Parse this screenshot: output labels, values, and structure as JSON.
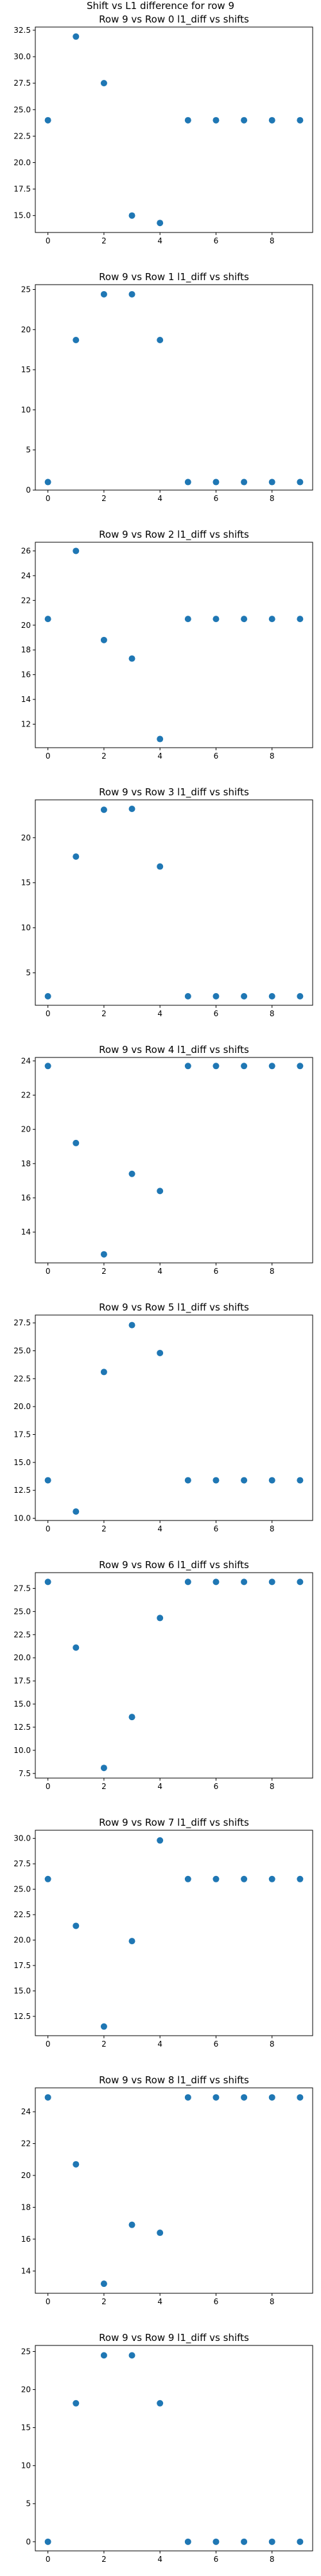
{
  "figure": {
    "suptitle": "Shift vs L1 difference for row 9",
    "marker_color": "#1f77b4"
  },
  "chart_data": [
    {
      "type": "scatter",
      "title": "Row 9 vs Row 0 l1_diff vs shifts",
      "xlabel": "",
      "ylabel": "",
      "x": [
        0,
        1,
        2,
        3,
        4,
        5,
        6,
        7,
        8,
        9
      ],
      "y": [
        24.0,
        31.9,
        27.5,
        15.0,
        14.3,
        24.0,
        24.0,
        24.0,
        24.0,
        24.0
      ],
      "xlim": [
        -0.45,
        9.45
      ],
      "ylim": [
        13.4,
        32.8
      ],
      "xticks": [
        0,
        2,
        4,
        6,
        8
      ],
      "yticks": [
        15.0,
        17.5,
        20.0,
        22.5,
        25.0,
        27.5,
        30.0,
        32.5
      ],
      "ytick_labels": [
        "15.0",
        "17.5",
        "20.0",
        "22.5",
        "25.0",
        "27.5",
        "30.0",
        "32.5"
      ],
      "grid": false,
      "legend": false
    },
    {
      "type": "scatter",
      "title": "Row 9 vs Row 1 l1_diff vs shifts",
      "xlabel": "",
      "ylabel": "",
      "x": [
        0,
        1,
        2,
        3,
        4,
        5,
        6,
        7,
        8,
        9
      ],
      "y": [
        1.0,
        18.7,
        24.4,
        24.4,
        18.7,
        1.0,
        1.0,
        1.0,
        1.0,
        1.0
      ],
      "xlim": [
        -0.45,
        9.45
      ],
      "ylim": [
        0,
        25.6
      ],
      "xticks": [
        0,
        2,
        4,
        6,
        8
      ],
      "yticks": [
        0,
        5,
        10,
        15,
        20,
        25
      ],
      "ytick_labels": [
        "0",
        "5",
        "10",
        "15",
        "20",
        "25"
      ],
      "grid": false,
      "legend": false
    },
    {
      "type": "scatter",
      "title": "Row 9 vs Row 2 l1_diff vs shifts",
      "xlabel": "",
      "ylabel": "",
      "x": [
        0,
        1,
        2,
        3,
        4,
        5,
        6,
        7,
        8,
        9
      ],
      "y": [
        20.5,
        26.0,
        18.8,
        17.3,
        10.8,
        20.5,
        20.5,
        20.5,
        20.5,
        20.5
      ],
      "xlim": [
        -0.45,
        9.45
      ],
      "ylim": [
        10.1,
        26.7
      ],
      "xticks": [
        0,
        2,
        4,
        6,
        8
      ],
      "yticks": [
        12,
        14,
        16,
        18,
        20,
        22,
        24,
        26
      ],
      "ytick_labels": [
        "12",
        "14",
        "16",
        "18",
        "20",
        "22",
        "24",
        "26"
      ],
      "grid": false,
      "legend": false
    },
    {
      "type": "scatter",
      "title": "Row 9 vs Row 3 l1_diff vs shifts",
      "xlabel": "",
      "ylabel": "",
      "x": [
        0,
        1,
        2,
        3,
        4,
        5,
        6,
        7,
        8,
        9
      ],
      "y": [
        2.4,
        17.9,
        23.1,
        23.2,
        16.8,
        2.4,
        2.4,
        2.4,
        2.4,
        2.4
      ],
      "xlim": [
        -0.45,
        9.45
      ],
      "ylim": [
        1.4,
        24.2
      ],
      "xticks": [
        0,
        2,
        4,
        6,
        8
      ],
      "yticks": [
        5,
        10,
        15,
        20
      ],
      "ytick_labels": [
        "5",
        "10",
        "15",
        "20"
      ],
      "grid": false,
      "legend": false
    },
    {
      "type": "scatter",
      "title": "Row 9 vs Row 4 l1_diff vs shifts",
      "xlabel": "",
      "ylabel": "",
      "x": [
        0,
        1,
        2,
        3,
        4,
        5,
        6,
        7,
        8,
        9
      ],
      "y": [
        23.7,
        19.2,
        12.7,
        17.4,
        16.4,
        23.7,
        23.7,
        23.7,
        23.7,
        23.7
      ],
      "xlim": [
        -0.45,
        9.45
      ],
      "ylim": [
        12.2,
        24.2
      ],
      "xticks": [
        0,
        2,
        4,
        6,
        8
      ],
      "yticks": [
        14,
        16,
        18,
        20,
        22,
        24
      ],
      "ytick_labels": [
        "14",
        "16",
        "18",
        "20",
        "22",
        "24"
      ],
      "grid": false,
      "legend": false
    },
    {
      "type": "scatter",
      "title": "Row 9 vs Row 5 l1_diff vs shifts",
      "xlabel": "",
      "ylabel": "",
      "x": [
        0,
        1,
        2,
        3,
        4,
        5,
        6,
        7,
        8,
        9
      ],
      "y": [
        13.4,
        10.6,
        23.1,
        27.3,
        24.8,
        13.4,
        13.4,
        13.4,
        13.4,
        13.4
      ],
      "xlim": [
        -0.45,
        9.45
      ],
      "ylim": [
        9.8,
        28.2
      ],
      "xticks": [
        0,
        2,
        4,
        6,
        8
      ],
      "yticks": [
        10.0,
        12.5,
        15.0,
        17.5,
        20.0,
        22.5,
        25.0,
        27.5
      ],
      "ytick_labels": [
        "10.0",
        "12.5",
        "15.0",
        "17.5",
        "20.0",
        "22.5",
        "25.0",
        "27.5"
      ],
      "grid": false,
      "legend": false
    },
    {
      "type": "scatter",
      "title": "Row 9 vs Row 6 l1_diff vs shifts",
      "xlabel": "",
      "ylabel": "",
      "x": [
        0,
        1,
        2,
        3,
        4,
        5,
        6,
        7,
        8,
        9
      ],
      "y": [
        28.2,
        21.1,
        8.1,
        13.6,
        24.3,
        28.2,
        28.2,
        28.2,
        28.2,
        28.2
      ],
      "xlim": [
        -0.45,
        9.45
      ],
      "ylim": [
        7.0,
        29.2
      ],
      "xticks": [
        0,
        2,
        4,
        6,
        8
      ],
      "yticks": [
        7.5,
        10.0,
        12.5,
        15.0,
        17.5,
        20.0,
        22.5,
        25.0,
        27.5
      ],
      "ytick_labels": [
        "7.5",
        "10.0",
        "12.5",
        "15.0",
        "17.5",
        "20.0",
        "22.5",
        "25.0",
        "27.5"
      ],
      "grid": false,
      "legend": false
    },
    {
      "type": "scatter",
      "title": "Row 9 vs Row 7 l1_diff vs shifts",
      "xlabel": "",
      "ylabel": "",
      "x": [
        0,
        1,
        2,
        3,
        4,
        5,
        6,
        7,
        8,
        9
      ],
      "y": [
        26.0,
        21.4,
        11.5,
        19.9,
        29.8,
        26.0,
        26.0,
        26.0,
        26.0,
        26.0
      ],
      "xlim": [
        -0.45,
        9.45
      ],
      "ylim": [
        10.6,
        30.8
      ],
      "xticks": [
        0,
        2,
        4,
        6,
        8
      ],
      "yticks": [
        12.5,
        15.0,
        17.5,
        20.0,
        22.5,
        25.0,
        27.5,
        30.0
      ],
      "ytick_labels": [
        "12.5",
        "15.0",
        "17.5",
        "20.0",
        "22.5",
        "25.0",
        "27.5",
        "30.0"
      ],
      "grid": false,
      "legend": false
    },
    {
      "type": "scatter",
      "title": "Row 9 vs Row 8 l1_diff vs shifts",
      "xlabel": "",
      "ylabel": "",
      "x": [
        0,
        1,
        2,
        3,
        4,
        5,
        6,
        7,
        8,
        9
      ],
      "y": [
        24.9,
        20.7,
        13.2,
        16.9,
        16.4,
        24.9,
        24.9,
        24.9,
        24.9,
        24.9
      ],
      "xlim": [
        -0.45,
        9.45
      ],
      "ylim": [
        12.6,
        25.5
      ],
      "xticks": [
        0,
        2,
        4,
        6,
        8
      ],
      "yticks": [
        14,
        16,
        18,
        20,
        22,
        24
      ],
      "ytick_labels": [
        "14",
        "16",
        "18",
        "20",
        "22",
        "24"
      ],
      "grid": false,
      "legend": false
    },
    {
      "type": "scatter",
      "title": "Row 9 vs Row 9 l1_diff vs shifts",
      "xlabel": "",
      "ylabel": "",
      "x": [
        0,
        1,
        2,
        3,
        4,
        5,
        6,
        7,
        8,
        9
      ],
      "y": [
        0.0,
        18.2,
        24.5,
        24.5,
        18.2,
        0.0,
        0.0,
        0.0,
        0.0,
        0.0
      ],
      "xlim": [
        -0.45,
        9.45
      ],
      "ylim": [
        -1.2,
        25.8
      ],
      "xticks": [
        0,
        2,
        4,
        6,
        8
      ],
      "yticks": [
        0,
        5,
        10,
        15,
        20,
        25
      ],
      "ytick_labels": [
        "0",
        "5",
        "10",
        "15",
        "20",
        "25"
      ],
      "grid": false,
      "legend": false
    }
  ]
}
